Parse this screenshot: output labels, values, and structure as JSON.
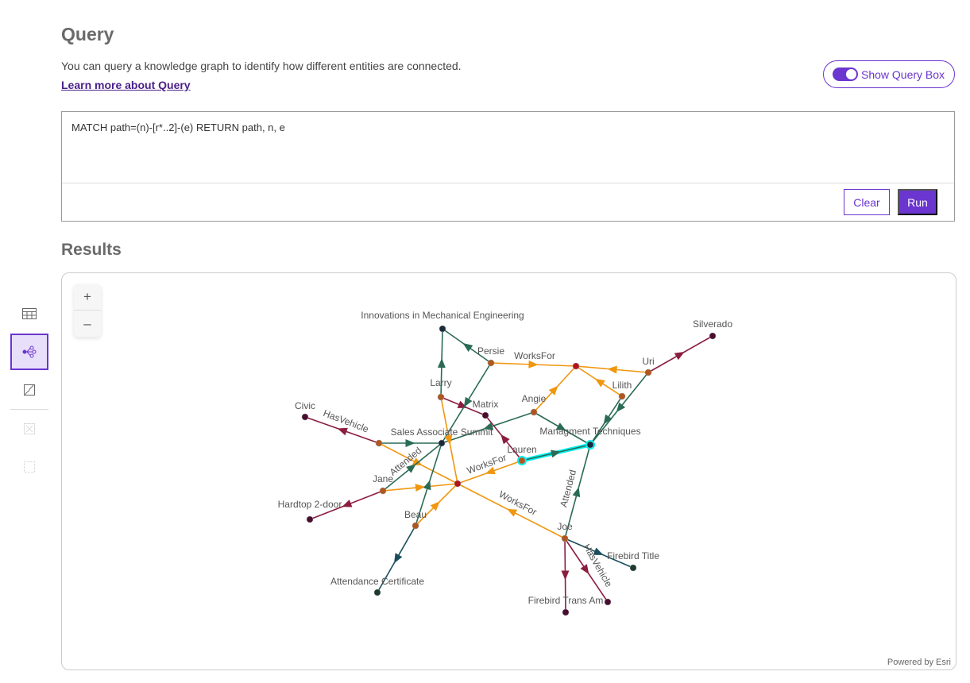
{
  "header": {
    "title": "Query",
    "description": "You can query a knowledge graph to identify how different entities are connected.",
    "learn_more": "Learn more about Query",
    "toggle_label": "Show Query Box",
    "toggle_on": true
  },
  "query": {
    "text": "MATCH path=(n)-[r*..2]-(e) RETURN path, n, e",
    "clear_label": "Clear",
    "run_label": "Run"
  },
  "results": {
    "title": "Results",
    "powered_by": "Powered by Esri",
    "zoom_in": "+",
    "zoom_out": "–"
  },
  "sidebar": {
    "items": [
      {
        "icon": "table-icon",
        "active": false
      },
      {
        "icon": "link-chart-icon",
        "active": true
      },
      {
        "icon": "map-icon",
        "active": false
      },
      {
        "icon": "select-icon",
        "disabled": true
      },
      {
        "icon": "clear-selection-icon",
        "disabled": true
      }
    ]
  },
  "colors": {
    "accent": "#6b35cf",
    "WorksFor": "#f0960f",
    "Attended": "#2a6b55",
    "HasVehicle": "#8b1d3f",
    "HasDocument": "#1a4e5c",
    "highlight": "#00f0f0"
  },
  "graph": {
    "nodes": [
      {
        "id": "ime",
        "label": "Innovations in Mechanical Engineering",
        "kind": "event"
      },
      {
        "id": "persie",
        "label": "Persie",
        "kind": "person"
      },
      {
        "id": "org1",
        "label": "",
        "kind": "org"
      },
      {
        "id": "uri",
        "label": "Uri",
        "kind": "person"
      },
      {
        "id": "silverado",
        "label": "Silverado",
        "kind": "vehicle"
      },
      {
        "id": "lilith",
        "label": "Lilith",
        "kind": "person"
      },
      {
        "id": "larry",
        "label": "Larry",
        "kind": "person"
      },
      {
        "id": "matrix",
        "label": "Matrix",
        "kind": "vehicle"
      },
      {
        "id": "angie",
        "label": "Angie",
        "kind": "person"
      },
      {
        "id": "civic",
        "label": "Civic",
        "kind": "vehicle"
      },
      {
        "id": "p1",
        "label": "",
        "kind": "person"
      },
      {
        "id": "sas",
        "label": "Sales Associate Summit",
        "kind": "event"
      },
      {
        "id": "mt",
        "label": "Managment Techniques",
        "kind": "event"
      },
      {
        "id": "lauren",
        "label": "Lauren",
        "kind": "person"
      },
      {
        "id": "org2",
        "label": "",
        "kind": "org"
      },
      {
        "id": "jane",
        "label": "Jane",
        "kind": "person"
      },
      {
        "id": "hardtop",
        "label": "Hardtop 2-door",
        "kind": "vehicle"
      },
      {
        "id": "beau",
        "label": "Beau",
        "kind": "person"
      },
      {
        "id": "joe",
        "label": "Joe",
        "kind": "person"
      },
      {
        "id": "ftitle",
        "label": "Firebird Title",
        "kind": "doc"
      },
      {
        "id": "acert",
        "label": "Attendance Certificate",
        "kind": "doc"
      },
      {
        "id": "ftrans",
        "label": "Firebird Trans Am",
        "kind": "vehicle"
      },
      {
        "id": "v2",
        "label": "",
        "kind": "vehicle"
      }
    ],
    "edges": [
      {
        "from": "persie",
        "to": "ime",
        "type": "Attended",
        "label": ""
      },
      {
        "from": "larry",
        "to": "ime",
        "type": "Attended",
        "label": ""
      },
      {
        "from": "persie",
        "to": "org1",
        "type": "WorksFor",
        "label": "WorksFor"
      },
      {
        "from": "uri",
        "to": "org1",
        "type": "WorksFor",
        "label": ""
      },
      {
        "from": "lilith",
        "to": "org1",
        "type": "WorksFor",
        "label": ""
      },
      {
        "from": "angie",
        "to": "org1",
        "type": "WorksFor",
        "label": ""
      },
      {
        "from": "uri",
        "to": "silverado",
        "type": "HasVehicle",
        "label": ""
      },
      {
        "from": "uri",
        "to": "mt",
        "type": "Attended",
        "label": ""
      },
      {
        "from": "lilith",
        "to": "mt",
        "type": "Attended",
        "label": ""
      },
      {
        "from": "larry",
        "to": "matrix",
        "type": "HasVehicle",
        "label": ""
      },
      {
        "from": "lauren",
        "to": "matrix",
        "type": "HasVehicle",
        "label": ""
      },
      {
        "from": "persie",
        "to": "sas",
        "type": "Attended",
        "label": ""
      },
      {
        "from": "angie",
        "to": "sas",
        "type": "Attended",
        "label": ""
      },
      {
        "from": "angie",
        "to": "mt",
        "type": "Attended",
        "label": ""
      },
      {
        "from": "p1",
        "to": "civic",
        "type": "HasVehicle",
        "label": "HasVehicle"
      },
      {
        "from": "p1",
        "to": "sas",
        "type": "Attended",
        "label": ""
      },
      {
        "from": "p1",
        "to": "org2",
        "type": "WorksFor",
        "label": ""
      },
      {
        "from": "larry",
        "to": "org2",
        "type": "WorksFor",
        "label": ""
      },
      {
        "from": "lauren",
        "to": "org2",
        "type": "WorksFor",
        "label": "WorksFor"
      },
      {
        "from": "joe",
        "to": "org2",
        "type": "WorksFor",
        "label": "WorksFor"
      },
      {
        "from": "jane",
        "to": "org2",
        "type": "WorksFor",
        "label": ""
      },
      {
        "from": "beau",
        "to": "org2",
        "type": "WorksFor",
        "label": ""
      },
      {
        "from": "jane",
        "to": "sas",
        "type": "Attended",
        "label": "Attended"
      },
      {
        "from": "jane",
        "to": "hardtop",
        "type": "HasVehicle",
        "label": ""
      },
      {
        "from": "beau",
        "to": "sas",
        "type": "Attended",
        "label": ""
      },
      {
        "from": "beau",
        "to": "acert",
        "type": "HasDocument",
        "label": ""
      },
      {
        "from": "lauren",
        "to": "mt",
        "type": "Attended",
        "label": "",
        "highlighted": true
      },
      {
        "from": "joe",
        "to": "mt",
        "type": "Attended",
        "label": "Attended"
      },
      {
        "from": "joe",
        "to": "ftitle",
        "type": "HasDocument",
        "label": ""
      },
      {
        "from": "joe",
        "to": "ftrans",
        "type": "HasVehicle",
        "label": ""
      },
      {
        "from": "joe",
        "to": "v2",
        "type": "HasVehicle",
        "label": "HasVehicle"
      }
    ]
  }
}
